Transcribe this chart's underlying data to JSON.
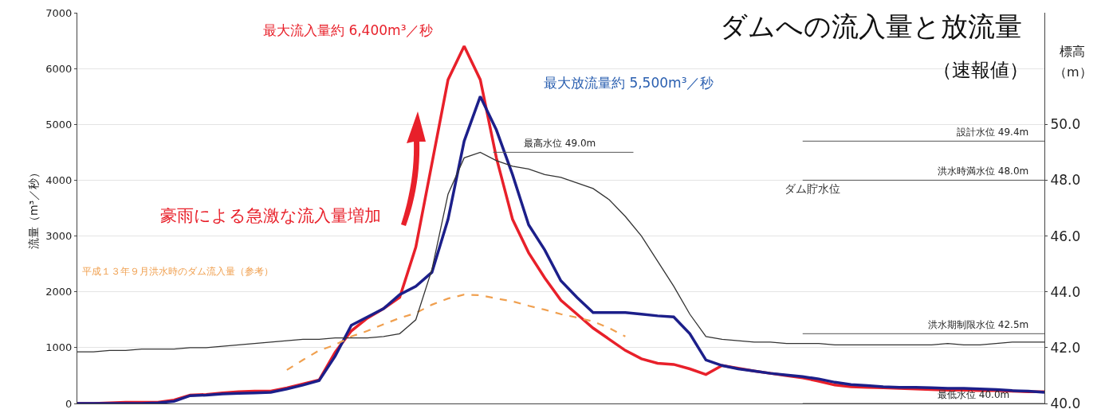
{
  "chart_data": {
    "type": "line",
    "title": "ダムへの流入量と放流量",
    "subtitle": "（速報値）",
    "ylabel": "流量（m³／秒）",
    "y2label": "標高（m）",
    "categories": [
      null,
      null,
      null,
      null,
      null,
      null,
      null,
      null,
      null,
      null,
      null,
      null,
      null,
      null,
      null,
      null,
      null,
      null,
      null,
      null,
      null,
      null,
      null,
      null,
      null,
      null,
      null,
      null,
      null,
      null,
      null,
      null,
      null,
      null,
      null,
      null,
      null,
      null,
      null,
      null,
      null,
      null,
      null,
      null,
      null,
      null,
      null,
      null,
      null,
      null,
      null,
      null,
      null,
      null,
      null,
      null,
      null,
      null,
      null,
      null,
      null
    ],
    "series": [
      {
        "color": "#e8202a",
        "line_style": "solid",
        "values": [
          0,
          0,
          10,
          20,
          20,
          20,
          60,
          150,
          160,
          190,
          210,
          220,
          220,
          280,
          350,
          420,
          920,
          1300,
          1530,
          1700,
          1900,
          2800,
          4300,
          5800,
          6400,
          5800,
          4400,
          3300,
          2700,
          2250,
          1850,
          1600,
          1350,
          1150,
          950,
          800,
          720,
          700,
          620,
          520,
          680,
          630,
          580,
          540,
          500,
          460,
          400,
          330,
          300,
          290,
          280,
          270,
          260,
          250,
          240,
          240,
          230,
          230,
          220,
          210,
          210
        ]
      },
      {
        "color": "#1c1f8a",
        "line_style": "solid",
        "values": [
          0,
          0,
          0,
          0,
          0,
          10,
          40,
          140,
          150,
          170,
          180,
          190,
          200,
          260,
          330,
          410,
          850,
          1400,
          1550,
          1700,
          1950,
          2100,
          2350,
          3300,
          4700,
          5500,
          4900,
          4100,
          3200,
          2750,
          2200,
          1900,
          1630,
          1630,
          1630,
          1600,
          1570,
          1550,
          1250,
          780,
          680,
          620,
          580,
          540,
          510,
          480,
          440,
          380,
          340,
          320,
          300,
          290,
          290,
          280,
          270,
          270,
          260,
          250,
          230,
          220,
          200
        ]
      },
      {
        "name": "ダム貯水位",
        "color": "#333333",
        "line_style": "solid",
        "axis": "y2",
        "values": [
          41.85,
          41.85,
          41.9,
          41.9,
          41.95,
          41.95,
          41.95,
          42.0,
          42.0,
          42.05,
          42.1,
          42.15,
          42.2,
          42.25,
          42.3,
          42.3,
          42.35,
          42.35,
          42.35,
          42.4,
          42.5,
          43.0,
          44.8,
          47.5,
          48.8,
          49.0,
          48.7,
          48.5,
          48.4,
          48.2,
          48.1,
          47.9,
          47.7,
          47.3,
          46.7,
          46.0,
          45.1,
          44.2,
          43.2,
          42.4,
          42.3,
          42.25,
          42.2,
          42.2,
          42.15,
          42.15,
          42.15,
          42.1,
          42.1,
          42.1,
          42.1,
          42.1,
          42.1,
          42.1,
          42.15,
          42.1,
          42.1,
          42.15,
          42.2,
          42.2,
          42.2
        ]
      },
      {
        "name": "平成１３年９月洪水時のダム流入量（参考）",
        "color": "#f0a050",
        "line_style": "dashed",
        "values": [
          null,
          null,
          null,
          null,
          null,
          null,
          null,
          null,
          null,
          null,
          null,
          null,
          null,
          600,
          780,
          950,
          1050,
          1200,
          1300,
          1420,
          1530,
          1620,
          1770,
          1880,
          1950,
          1940,
          1880,
          1830,
          1750,
          1680,
          1600,
          1540,
          1470,
          1350,
          1200,
          null,
          null,
          null,
          null,
          null,
          null,
          null,
          null,
          null,
          null,
          null,
          null,
          null,
          null,
          null,
          null,
          null,
          null,
          null,
          null,
          null,
          null,
          null,
          null,
          null,
          null
        ]
      }
    ],
    "ylim": [
      0,
      7000
    ],
    "yticks": [
      0,
      1000,
      2000,
      3000,
      4000,
      5000,
      6000,
      7000
    ],
    "y2lim": [
      40,
      54
    ],
    "y2ticks": [
      {
        "value": 40,
        "label": "40.0"
      },
      {
        "value": 42,
        "label": "42.0"
      },
      {
        "value": 44,
        "label": "44.0"
      },
      {
        "value": 46,
        "label": "46.0"
      },
      {
        "value": 48,
        "label": "48.0"
      },
      {
        "value": 50,
        "label": "50.0"
      }
    ],
    "ref_lines": [
      {
        "axis": "y2",
        "value": 49.4,
        "label": "設計水位 49.4m"
      },
      {
        "axis": "y2",
        "value": 48.0,
        "label": "洪水時満水位 48.0m"
      },
      {
        "axis": "y2",
        "value": 49.0,
        "label": "最高水位 49.0m"
      },
      {
        "axis": "y2",
        "value": 42.5,
        "label": "洪水期制限水位 42.5m"
      },
      {
        "axis": "y2",
        "value": 40.0,
        "label": "最低水位 40.0m"
      }
    ],
    "annotations": [
      "最大流入量約 6,400m³／秒",
      "最大放流量約 5,500m³／秒",
      "豪雨による急激な流入量増加"
    ],
    "grid": "y",
    "legend": false,
    "marker": "none",
    "tick_labels": "y"
  }
}
